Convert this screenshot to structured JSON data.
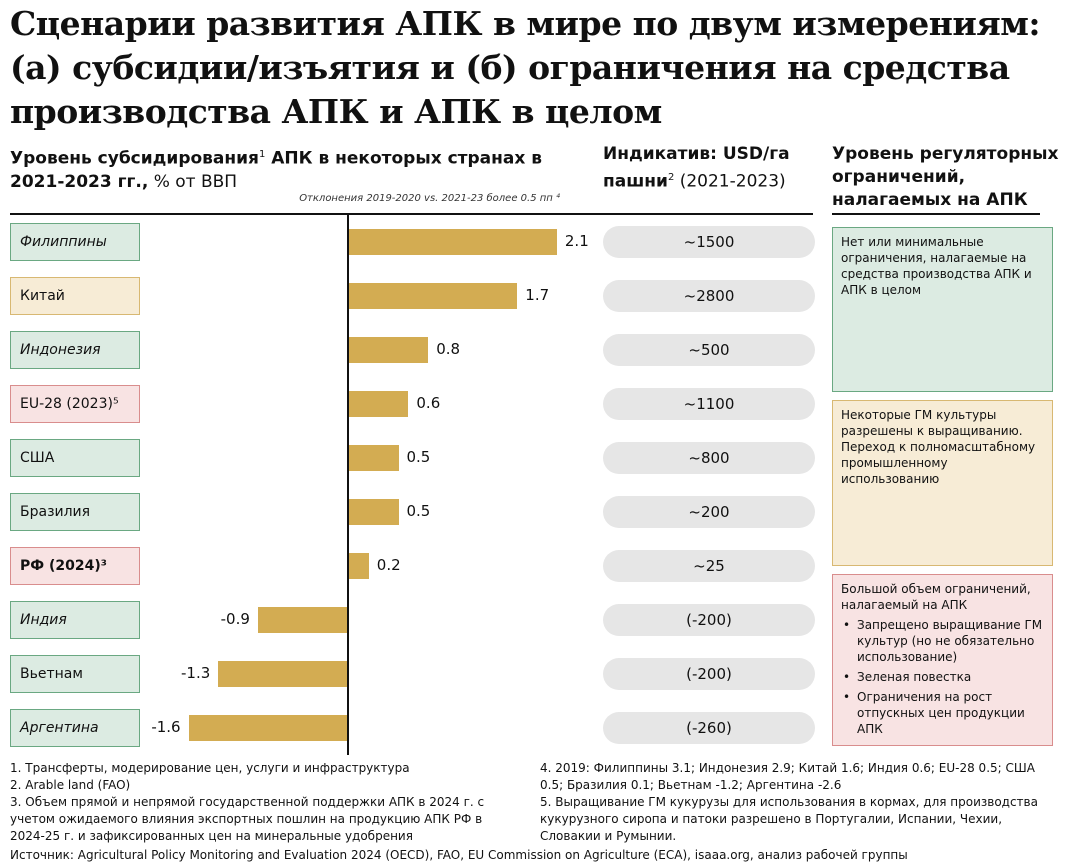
{
  "title": "Сценарии развития АПК в мире по двум измерениям: (а) субсидии/изъятия и (б) ограничения на средства производства АПК и АПК в целом",
  "subsidy_header": {
    "bold": "Уровень субсидирования",
    "sup": "1",
    "bold2": " АПК в некоторых странах в 2021-2023 гг.,",
    "normal": " % от ВВП"
  },
  "deviation_note": "Отклонения 2019-2020 vs. 2021-23 более 0.5 пп ⁴",
  "indicative_header": {
    "bold": "Индикатив: USD/га пашни",
    "sup": "2",
    "normal": " (2021-2023)"
  },
  "regulatory_header": "Уровень регуляторных ограничений, налагаемых на АПК",
  "colors": {
    "bar": "#d3ac52",
    "green": "#dcebe2",
    "green_border": "#6aa882",
    "yellow": "#f7ecd6",
    "yellow_border": "#d8b872",
    "pink": "#f8e3e3",
    "pink_border": "#d98d8d",
    "pill": "#e6e6e6"
  },
  "chart_data": {
    "type": "bar",
    "orientation": "horizontal",
    "ylabel": "% от ВВП",
    "categories": [
      "Филиппины",
      "Китай",
      "Индонезия",
      "EU-28 (2023)⁵",
      "США",
      "Бразилия",
      "РФ (2024)³",
      "Индия",
      "Вьетнам",
      "Аргентина"
    ],
    "values": [
      2.1,
      1.7,
      0.8,
      0.6,
      0.5,
      0.5,
      0.2,
      -0.9,
      -1.3,
      -1.6
    ],
    "value_labels": [
      "2.1",
      "1.7",
      "0.8",
      "0.6",
      "0.5",
      "0.5",
      "0.2",
      "-0.9",
      "-1.3",
      "-1.6"
    ],
    "category_group": [
      "green",
      "yellow",
      "green",
      "pink",
      "green",
      "green",
      "pink",
      "green",
      "green",
      "green"
    ],
    "deviation_italic": [
      true,
      false,
      true,
      false,
      false,
      false,
      false,
      true,
      false,
      true
    ],
    "bold": [
      false,
      false,
      false,
      false,
      false,
      false,
      true,
      false,
      false,
      false
    ],
    "indicative_usd_per_ha": [
      "~1500",
      "~2800",
      "~500",
      "~1100",
      "~800",
      "~200",
      "~25",
      "(-200)",
      "(-200)",
      "(-260)"
    ],
    "xlim": [
      -1.6,
      2.1
    ],
    "grid": false
  },
  "panels": {
    "green": {
      "text": "Нет или минимальные ограничения, налагаемые на средства производства АПК и АПК в целом"
    },
    "yellow": {
      "text": "Некоторые ГМ культуры разрешены к выращиванию. Переход к полномасштабному промышленному использованию"
    },
    "pink": {
      "text": "Большой объем ограничений, налагаемый на АПК",
      "items": [
        "Запрещено выращивание ГМ культур (но не обязательно использование)",
        "Зеленая повестка",
        "Ограничения на рост отпускных цен продукции АПК"
      ]
    }
  },
  "footnotes": {
    "left": [
      "1. Трансферты, модерирование цен, услуги и инфраструктура",
      "2. Arable land (FAO)",
      "3. Объем прямой и непрямой государственной поддержки АПК в 2024 г. с учетом ожидаемого влияния экспортных пошлин на продукцию АПК РФ в 2024-25 г. и зафиксированных цен на минеральные удобрения"
    ],
    "right": [
      "4. 2019: Филиппины 3.1; Индонезия 2.9; Китай 1.6; Индия 0.6; EU-28 0.5; США 0.5; Бразилия 0.1; Вьетнам -1.2; Аргентина -2.6",
      "5. Выращивание ГМ кукурузы для использования в кормах, для производства кукурузного сиропа и патоки разрешено в Португалии, Испании, Чехии, Словакии и Румынии."
    ]
  },
  "source": "Источник: Agricultural Policy Monitoring and Evaluation 2024 (OECD), FAO, EU Commission on Agriculture (ECA), isaaa.org, анализ рабочей группы"
}
